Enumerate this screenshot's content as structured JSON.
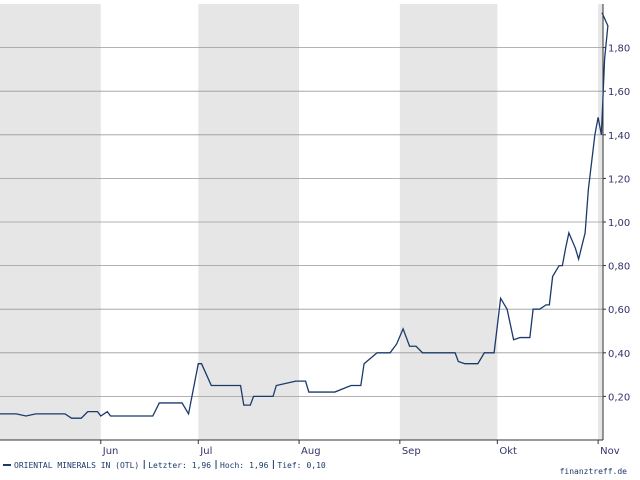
{
  "chart_data": {
    "type": "line",
    "x": [
      0,
      5,
      8,
      11,
      20,
      22,
      25,
      27,
      30,
      31,
      33,
      34,
      47,
      49,
      56,
      58,
      61,
      62,
      65,
      74,
      75,
      77,
      78,
      84,
      85,
      91,
      94,
      95,
      103,
      108,
      111,
      112,
      116,
      120,
      122,
      124,
      126,
      128,
      130,
      140,
      141,
      143,
      147,
      149,
      152,
      154,
      156,
      158,
      160,
      163,
      164,
      166,
      168,
      169,
      170,
      172,
      173,
      174,
      175,
      177,
      178,
      180,
      181,
      183,
      184,
      185,
      186,
      187,
      185.2
    ],
    "series": [
      {
        "name": "ORIENTAL MINERALS IN (OTL)",
        "color": "#1a3a6b",
        "values": [
          0.12,
          0.12,
          0.11,
          0.12,
          0.12,
          0.1,
          0.1,
          0.13,
          0.13,
          0.11,
          0.13,
          0.11,
          0.11,
          0.17,
          0.17,
          0.12,
          0.35,
          0.35,
          0.25,
          0.25,
          0.16,
          0.16,
          0.2,
          0.2,
          0.25,
          0.27,
          0.27,
          0.22,
          0.22,
          0.25,
          0.25,
          0.35,
          0.4,
          0.4,
          0.44,
          0.51,
          0.43,
          0.43,
          0.4,
          0.4,
          0.36,
          0.35,
          0.35,
          0.4,
          0.4,
          0.65,
          0.6,
          0.46,
          0.47,
          0.47,
          0.6,
          0.6,
          0.62,
          0.62,
          0.75,
          0.8,
          0.8,
          0.88,
          0.95,
          0.88,
          0.83,
          0.95,
          1.15,
          1.4,
          1.48,
          1.4,
          1.75,
          1.9,
          1.96
        ]
      }
    ],
    "xlim": [
      0,
      185.5
    ],
    "xticks": [
      {
        "value": 31,
        "label": "Jun"
      },
      {
        "value": 61,
        "label": "Jul"
      },
      {
        "value": 92,
        "label": "Aug"
      },
      {
        "value": 123,
        "label": "Sep"
      },
      {
        "value": 153,
        "label": "Okt"
      },
      {
        "value": 184,
        "label": "Nov"
      }
    ],
    "ylim": [
      0,
      2.0
    ],
    "yticks": [
      {
        "value": 0.2,
        "label": "0,20"
      },
      {
        "value": 0.4,
        "label": "0,40"
      },
      {
        "value": 0.6,
        "label": "0,60"
      },
      {
        "value": 0.8,
        "label": "0,80"
      },
      {
        "value": 1.0,
        "label": "1,00"
      },
      {
        "value": 1.2,
        "label": "1,20"
      },
      {
        "value": 1.4,
        "label": "1,40"
      },
      {
        "value": 1.6,
        "label": "1,60"
      },
      {
        "value": 1.8,
        "label": "1,80"
      }
    ],
    "grid": true,
    "footer": {
      "last_label": "Letzter:",
      "last": "1,96",
      "high_label": "Hoch:",
      "high": "1,96",
      "low_label": "Tief:",
      "low": "0,10",
      "source": "finanztreff.de"
    }
  }
}
